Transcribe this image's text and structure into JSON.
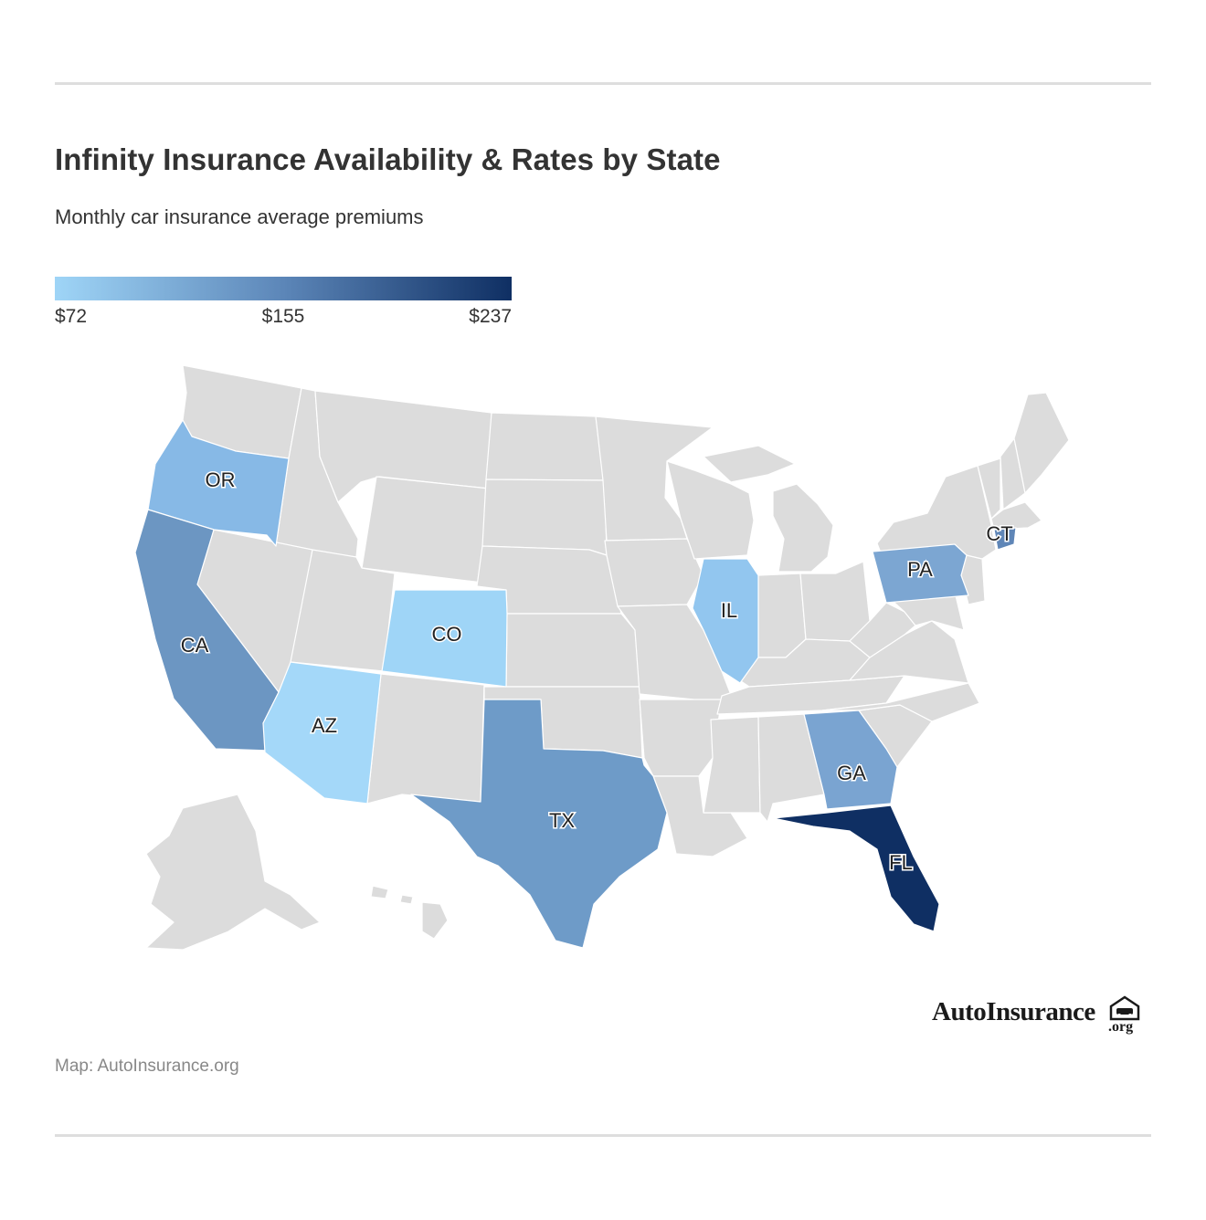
{
  "title": "Infinity Insurance Availability & Rates by State",
  "subtitle": "Monthly car insurance average premiums",
  "legend": {
    "min_label": "$72",
    "mid_label": "$155",
    "max_label": "$237",
    "min_value": 72,
    "mid_value": 155,
    "max_value": 237,
    "colors": [
      "#9fd5f7",
      "#5c86b8",
      "#0f2f63"
    ]
  },
  "map_data": {
    "type": "choropleth",
    "region": "United States",
    "no_data_color": "#dcdcdc",
    "states": [
      {
        "label": "OR",
        "color": "#87b9e6"
      },
      {
        "label": "CA",
        "color": "#6c96c2"
      },
      {
        "label": "CO",
        "color": "#9fd5f7"
      },
      {
        "label": "AZ",
        "color": "#a4d8f9"
      },
      {
        "label": "IL",
        "color": "#92c6ef"
      },
      {
        "label": "TX",
        "color": "#6e9bc8"
      },
      {
        "label": "PA",
        "color": "#7ca6d2"
      },
      {
        "label": "CT",
        "color": "#5f86b7"
      },
      {
        "label": "GA",
        "color": "#7aa4d1"
      },
      {
        "label": "FL",
        "color": "#0f2f63"
      }
    ]
  },
  "logo": {
    "name": "AutoInsurance",
    "suffix": ".org"
  },
  "credit": "Map: AutoInsurance.org"
}
